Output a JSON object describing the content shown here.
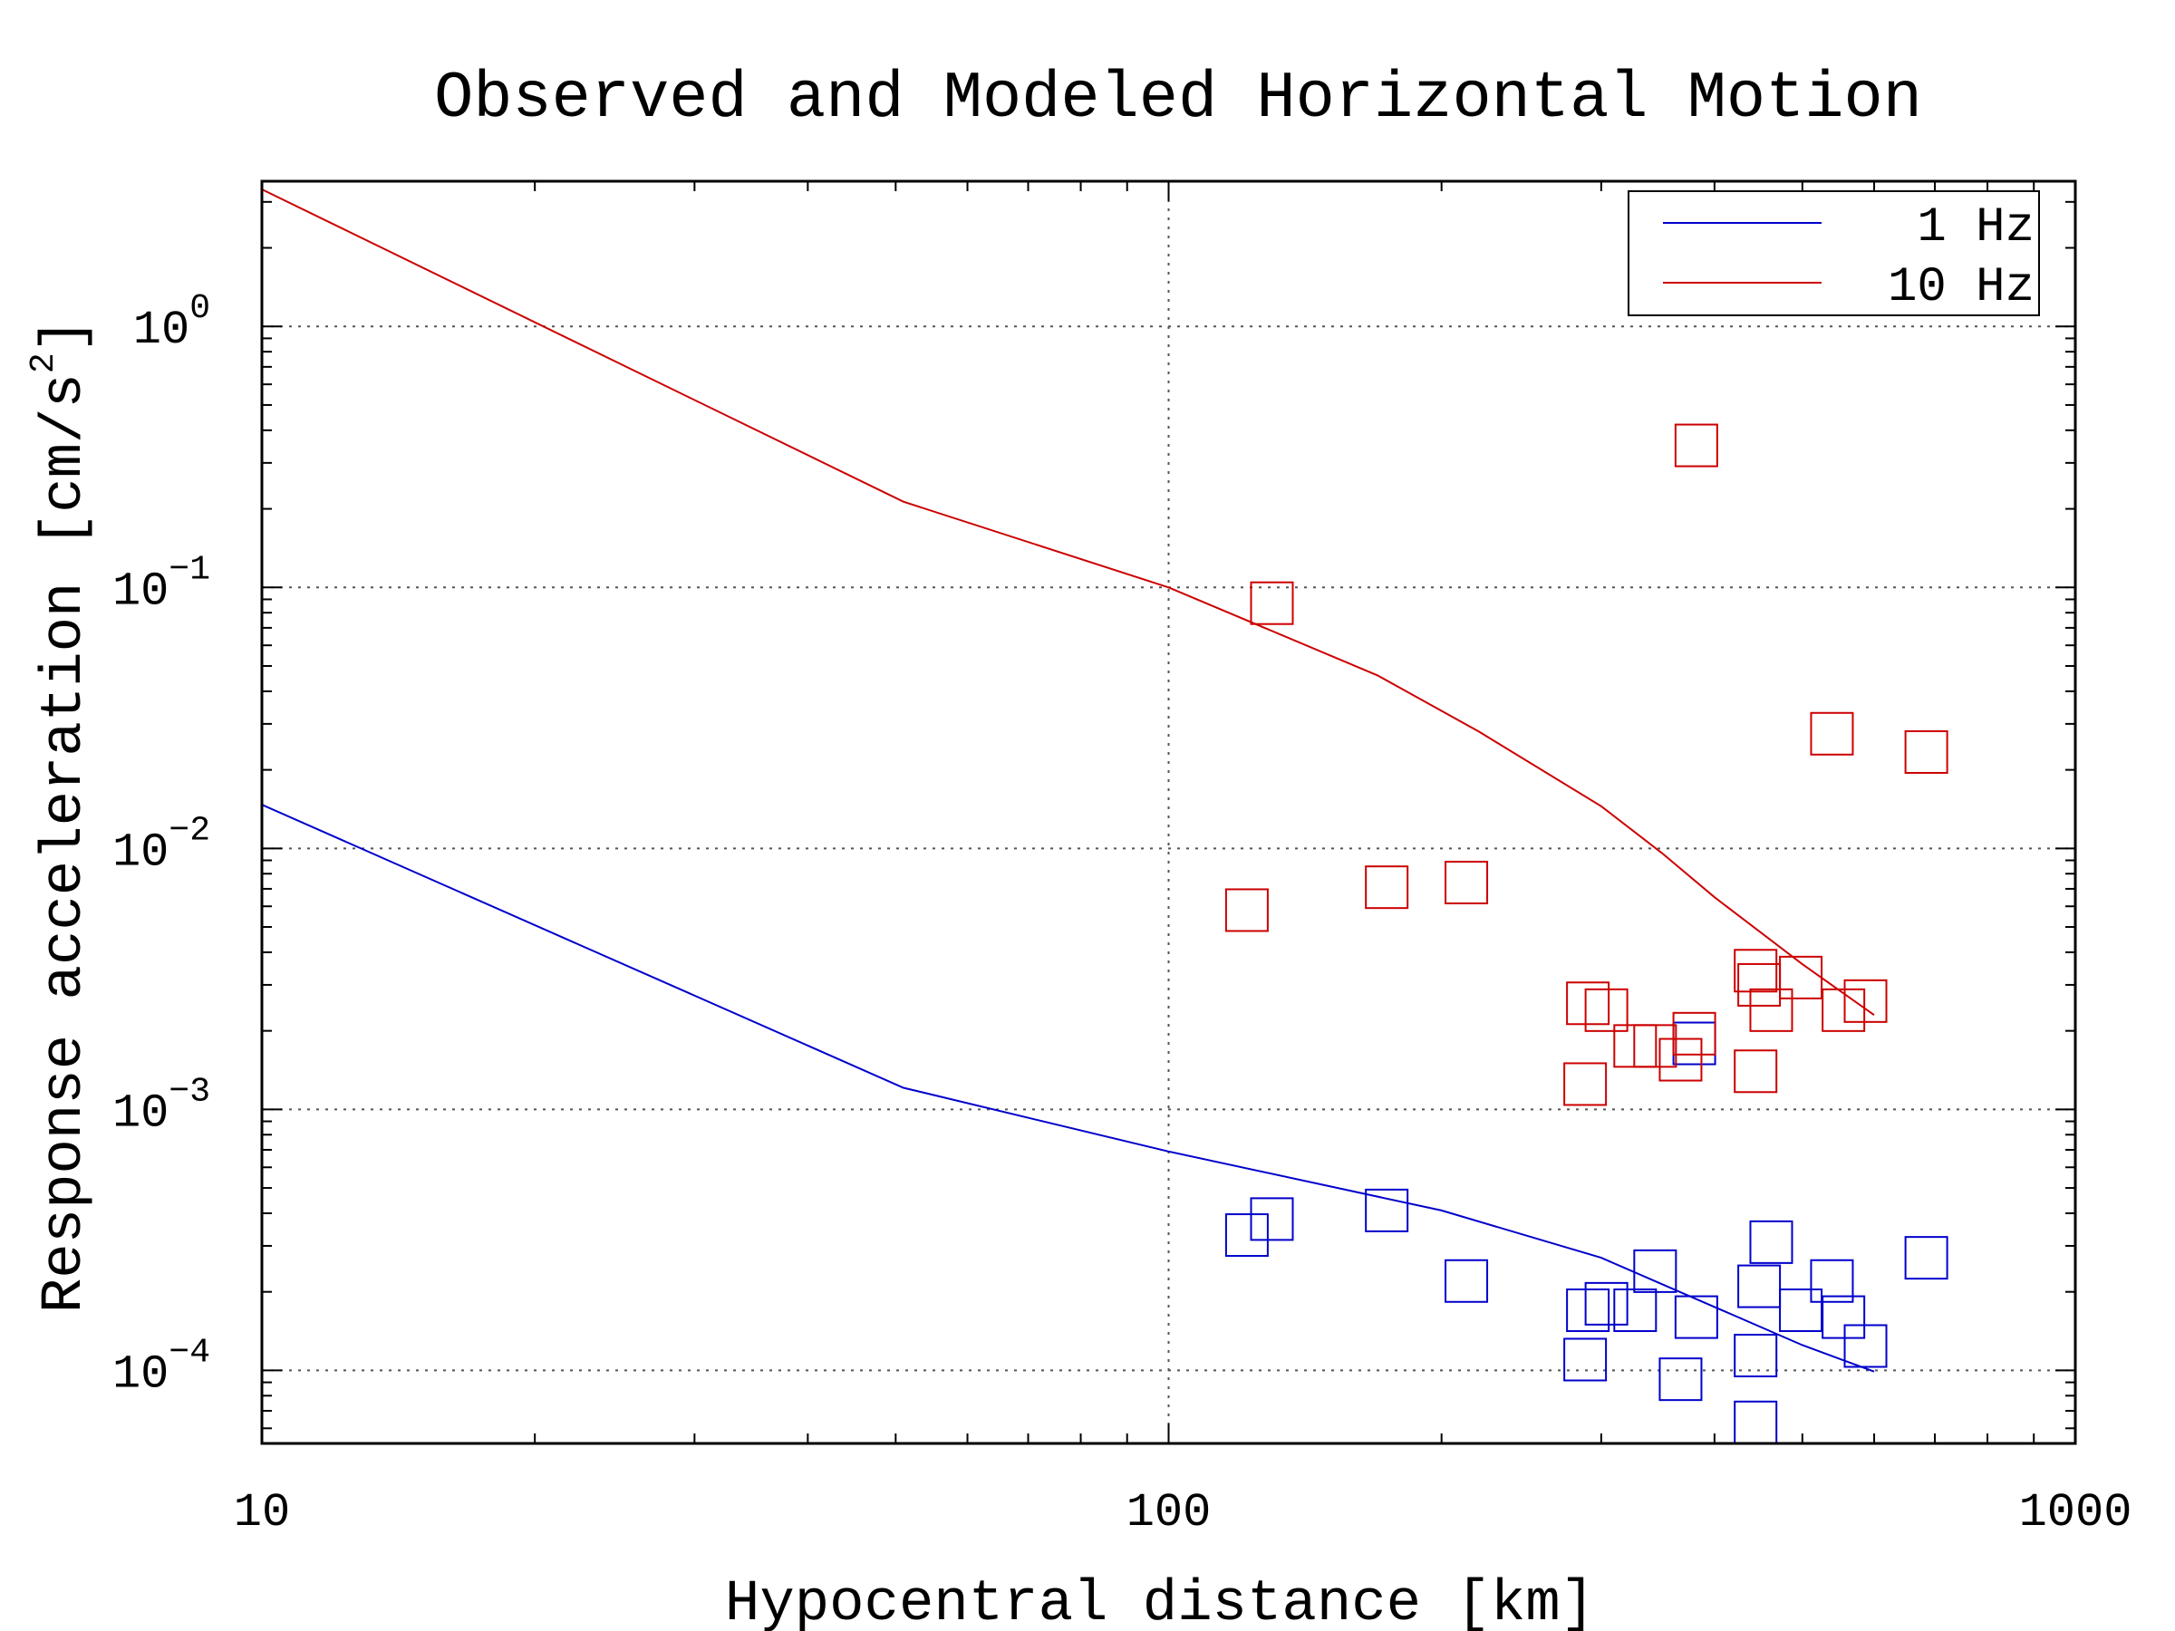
{
  "chart_data": {
    "type": "scatter",
    "title": "Observed and Modeled Horizontal Motion",
    "xlabel": "Hypocentral distance [km]",
    "ylabel_text": "Response acceleration [cm/s",
    "ylabel_exp": "2",
    "ylabel_close": "]",
    "x_scale": "log",
    "y_scale": "log",
    "xlim": [
      10,
      1000
    ],
    "ylim": [
      5.25e-05,
      3.6
    ],
    "grid": true,
    "legend_position": "top-right",
    "x_ticks": [
      {
        "value": 10,
        "label": "10"
      },
      {
        "value": 100,
        "label": "100"
      },
      {
        "value": 1000,
        "label": "1000"
      }
    ],
    "y_ticks": [
      {
        "value": 1,
        "base": "10",
        "exp": "0"
      },
      {
        "value": 0.1,
        "base": "10",
        "exp": "−1"
      },
      {
        "value": 0.01,
        "base": "10",
        "exp": "−2"
      },
      {
        "value": 0.001,
        "base": "10",
        "exp": "−3"
      },
      {
        "value": 0.0001,
        "base": "10",
        "exp": "−4"
      }
    ],
    "series": [
      {
        "name": "1 Hz",
        "color": "#0000cc",
        "model": {
          "x": [
            10,
            51,
            100,
            200,
            300,
            400,
            500,
            600
          ],
          "y": [
            0.0147,
            0.00121,
            0.00069,
            0.00041,
            0.00027,
            0.000175,
            0.000125,
            9.9e-05
          ]
        },
        "observed": {
          "x": [
            122,
            130,
            174,
            213,
            288,
            290,
            304,
            327,
            344,
            367,
            382,
            444,
            444,
            448,
            462,
            498,
            539,
            555,
            587,
            685,
            380
          ],
          "y": [
            0.00033,
            0.00038,
            0.00041,
            0.00022,
            0.00011,
            0.00017,
            0.00018,
            0.00017,
            0.00024,
            9.25e-05,
            0.00016,
            6.32e-05,
            0.000114,
            0.00021,
            0.00031,
            0.00017,
            0.00022,
            0.00016,
            0.000124,
            0.00027,
            0.00179
          ]
        }
      },
      {
        "name": "10 Hz",
        "color": "#cc0000",
        "model": {
          "x": [
            10,
            51,
            100,
            170,
            220,
            300,
            350,
            400,
            500,
            600
          ],
          "y": [
            3.35,
            0.213,
            0.1,
            0.046,
            0.028,
            0.0145,
            0.0096,
            0.0065,
            0.0036,
            0.0023
          ]
        },
        "observed": {
          "x": [
            122,
            130,
            174,
            213,
            288,
            290,
            304,
            327,
            344,
            367,
            382,
            444,
            444,
            448,
            462,
            498,
            539,
            555,
            587,
            685,
            380
          ],
          "y": [
            0.0058,
            0.087,
            0.0071,
            0.0074,
            0.00125,
            0.00255,
            0.0024,
            0.00175,
            0.00175,
            0.00155,
            0.35,
            0.0014,
            0.0034,
            0.003,
            0.0024,
            0.0032,
            0.0275,
            0.0024,
            0.0026,
            0.0234,
            0.00195
          ]
        }
      }
    ]
  }
}
